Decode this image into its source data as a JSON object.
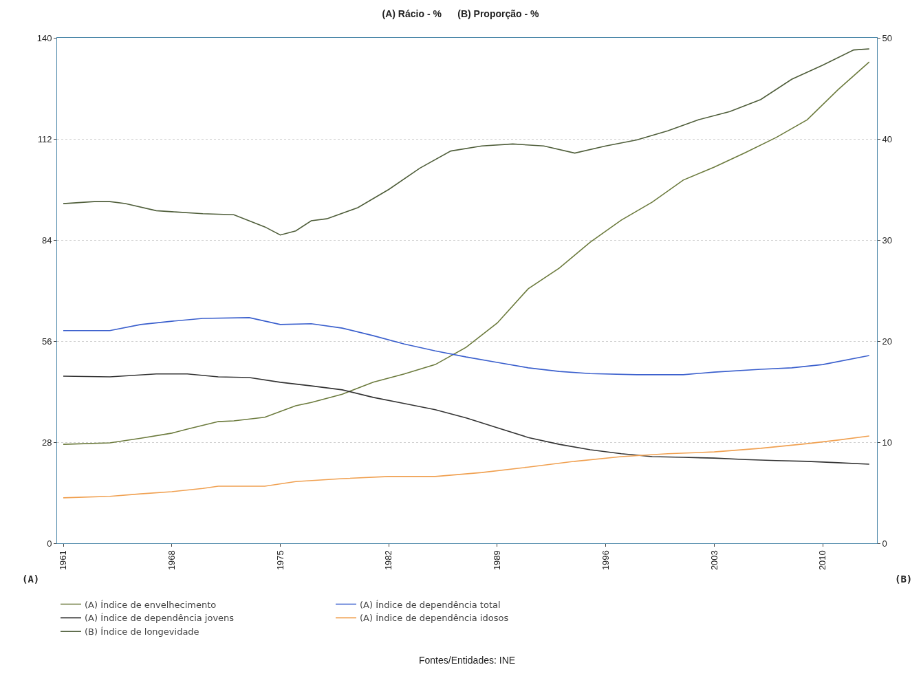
{
  "chart_data": {
    "type": "line",
    "title": "(A) Rácio - %      (B) Proporção - %",
    "ylabel": "(A)",
    "y2label": "(B)",
    "annotations": [
      "Fontes/Entidades: INE"
    ],
    "xlim": [
      1960.6,
      2013.5
    ],
    "xticks": [
      1961,
      1968,
      1975,
      1982,
      1989,
      1996,
      2003,
      2010
    ],
    "ylim": [
      0,
      140
    ],
    "yticks": [
      0,
      28,
      56,
      84,
      112,
      140
    ],
    "y2lim": [
      0,
      50
    ],
    "y2ticks": [
      0,
      10,
      20,
      30,
      40,
      50
    ],
    "grid": "y",
    "legend": "bottom",
    "series": [
      {
        "name": "(A) Índice de envelhecimento",
        "color": "#6b7a3c",
        "x": [
          1961,
          1964,
          1966,
          1968,
          1969,
          1971,
          1972,
          1974,
          1976,
          1977,
          1979,
          1981,
          1983,
          1985,
          1987,
          1989,
          1991,
          1993,
          1995,
          1997,
          1999,
          2001,
          2003,
          2005,
          2007,
          2009,
          2011,
          2013
        ],
        "values": [
          27.4,
          27.8,
          29.1,
          30.5,
          31.6,
          33.7,
          33.9,
          34.9,
          38.1,
          39.0,
          41.3,
          44.6,
          46.9,
          49.5,
          54.3,
          61.0,
          70.5,
          76.2,
          83.4,
          89.5,
          94.5,
          100.6,
          104.2,
          108.2,
          112.4,
          117.3,
          125.7,
          133.3
        ]
      },
      {
        "name": "(A) Índice de dependência total",
        "color": "#3a5fcd",
        "x": [
          1961,
          1964,
          1966,
          1968,
          1970,
          1973,
          1975,
          1977,
          1979,
          1981,
          1983,
          1985,
          1987,
          1989,
          1991,
          1993,
          1995,
          1998,
          2001,
          2003,
          2006,
          2008,
          2010,
          2013
        ],
        "values": [
          58.9,
          58.9,
          60.6,
          61.5,
          62.3,
          62.5,
          60.6,
          60.8,
          59.6,
          57.5,
          55.2,
          53.3,
          51.6,
          50.1,
          48.6,
          47.6,
          47.0,
          46.7,
          46.7,
          47.4,
          48.2,
          48.6,
          49.5,
          52.0
        ]
      },
      {
        "name": "(A) Índice de dependência jovens",
        "color": "#333333",
        "x": [
          1961,
          1964,
          1967,
          1969,
          1971,
          1973,
          1975,
          1977,
          1979,
          1981,
          1983,
          1985,
          1987,
          1989,
          1991,
          1993,
          1995,
          1997,
          1999,
          2001,
          2003,
          2005,
          2007,
          2009,
          2011,
          2013
        ],
        "values": [
          46.3,
          46.1,
          46.9,
          46.9,
          46.1,
          45.9,
          44.6,
          43.6,
          42.5,
          40.4,
          38.7,
          37.0,
          34.7,
          32.0,
          29.3,
          27.4,
          25.9,
          24.8,
          24.0,
          23.8,
          23.6,
          23.2,
          22.9,
          22.7,
          22.3,
          21.9
        ]
      },
      {
        "name": "(A) Índice de dependência idosos",
        "color": "#f0a050",
        "x": [
          1961,
          1964,
          1966,
          1968,
          1970,
          1971,
          1974,
          1976,
          1979,
          1982,
          1985,
          1988,
          1991,
          1994,
          1997,
          2000,
          2003,
          2006,
          2009,
          2011,
          2013
        ],
        "values": [
          12.6,
          13.0,
          13.7,
          14.3,
          15.2,
          15.8,
          15.8,
          17.1,
          17.9,
          18.5,
          18.5,
          19.6,
          21.1,
          22.7,
          24.0,
          24.8,
          25.3,
          26.3,
          27.6,
          28.6,
          29.7
        ]
      },
      {
        "name": "(B) Índice de longevidade",
        "color": "#4f5e3a",
        "axis": "y2",
        "x": [
          1961,
          1963,
          1964,
          1965,
          1967,
          1968,
          1970,
          1972,
          1974,
          1975,
          1976,
          1977,
          1978,
          1980,
          1982,
          1984,
          1986,
          1988,
          1990,
          1992,
          1994,
          1996,
          1998,
          2000,
          2002,
          2004,
          2006,
          2008,
          2010,
          2012,
          2013
        ],
        "values": [
          33.6,
          33.8,
          33.8,
          33.6,
          32.9,
          32.8,
          32.6,
          32.5,
          31.3,
          30.5,
          30.9,
          31.9,
          32.1,
          33.2,
          35.0,
          37.1,
          38.8,
          39.3,
          39.5,
          39.3,
          38.6,
          39.3,
          39.9,
          40.8,
          41.9,
          42.7,
          43.9,
          45.9,
          47.3,
          48.8,
          48.9
        ]
      }
    ]
  }
}
